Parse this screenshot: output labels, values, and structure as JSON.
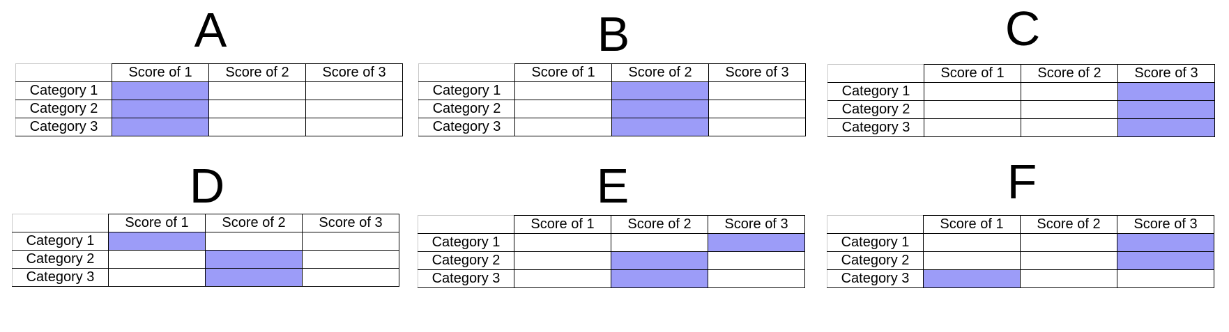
{
  "columns": [
    "Score of 1",
    "Score of 2",
    "Score of 3"
  ],
  "categories": [
    "Category 1",
    "Category 2",
    "Category 3"
  ],
  "highlight_color": "#9c9cf8",
  "panels": [
    {
      "label": "A",
      "highlighted_score": [
        1,
        1,
        1
      ]
    },
    {
      "label": "B",
      "highlighted_score": [
        2,
        2,
        2
      ]
    },
    {
      "label": "C",
      "highlighted_score": [
        3,
        3,
        3
      ]
    },
    {
      "label": "D",
      "highlighted_score": [
        1,
        2,
        2
      ]
    },
    {
      "label": "E",
      "highlighted_score": [
        3,
        2,
        2
      ]
    },
    {
      "label": "F",
      "highlighted_score": [
        3,
        3,
        1
      ]
    }
  ]
}
